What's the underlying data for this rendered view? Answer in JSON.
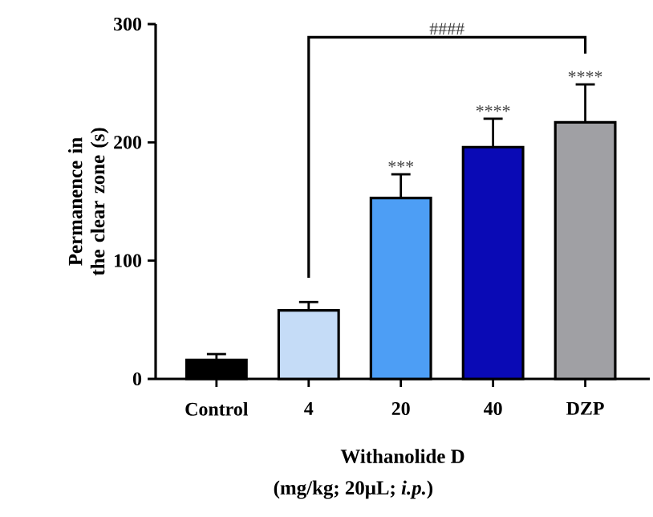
{
  "chart_data": {
    "type": "bar",
    "ylabel": "Permanence in the clear zone (s)",
    "xlabel": "Withanolide D",
    "categories": [
      "Control",
      "4",
      "20",
      "40",
      "DZP"
    ],
    "values": [
      16,
      58,
      153,
      196,
      217
    ],
    "errors": [
      5,
      7,
      20,
      24,
      32
    ],
    "colors": [
      "#000000",
      "#c5dcf7",
      "#4d9ef5",
      "#0a0ab5",
      "#a0a0a4"
    ],
    "ylim": [
      0,
      300
    ],
    "yticks": [
      0,
      100,
      200,
      300
    ],
    "grid": false,
    "annotations": [
      "(mg/kg; 20μL; *i.p.*)",
      {
        "text": "***",
        "x": "20",
        "y": 173
      },
      {
        "text": "****",
        "x": "40",
        "y": 220
      },
      {
        "text": "****",
        "x": "DZP",
        "y": 249
      },
      "####"
    ]
  }
}
